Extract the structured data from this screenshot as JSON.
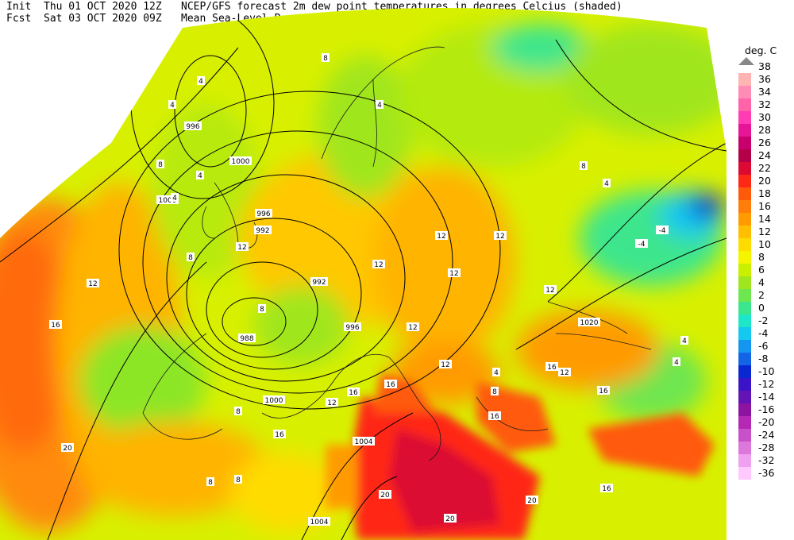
{
  "header": {
    "init_label": "Init",
    "init_time": "Thu 01 OCT 2020 12Z",
    "fcst_label": "Fcst",
    "fcst_time": "Sat 03 OCT 2020 09Z",
    "title_line1": "NCEP/GFS forecast 2m dew point temperatures in degrees Celcius (shaded)",
    "title_line2": "Mean Sea-Level Pressure (hPa) (black)."
  },
  "colorbar": {
    "unit": "deg. C",
    "levels": [
      {
        "v": "38",
        "c": "#bbbbbb"
      },
      {
        "v": "36",
        "c": "#ffb4b4"
      },
      {
        "v": "34",
        "c": "#ff8cb4"
      },
      {
        "v": "32",
        "c": "#ff64a8"
      },
      {
        "v": "30",
        "c": "#ff3cb4"
      },
      {
        "v": "28",
        "c": "#e61496"
      },
      {
        "v": "26",
        "c": "#c8006e"
      },
      {
        "v": "24",
        "c": "#b40046"
      },
      {
        "v": "22",
        "c": "#dc0a32"
      },
      {
        "v": "20",
        "c": "#ff2814"
      },
      {
        "v": "18",
        "c": "#ff5a0a"
      },
      {
        "v": "16",
        "c": "#ff7d0a"
      },
      {
        "v": "14",
        "c": "#ff9b00"
      },
      {
        "v": "12",
        "c": "#ffbe00"
      },
      {
        "v": "10",
        "c": "#ffdc00"
      },
      {
        "v": "8",
        "c": "#f5f500"
      },
      {
        "v": "6",
        "c": "#c8f000"
      },
      {
        "v": "4",
        "c": "#a0e61e"
      },
      {
        "v": "2",
        "c": "#6ee650"
      },
      {
        "v": "0",
        "c": "#3ce68c"
      },
      {
        "v": "-2",
        "c": "#1ee6c8"
      },
      {
        "v": "-4",
        "c": "#14c8f0"
      },
      {
        "v": "-6",
        "c": "#1496f0"
      },
      {
        "v": "-8",
        "c": "#1464e6"
      },
      {
        "v": "-10",
        "c": "#0a28d2"
      },
      {
        "v": "-12",
        "c": "#3c14c8"
      },
      {
        "v": "-14",
        "c": "#6414b4"
      },
      {
        "v": "-16",
        "c": "#8c14a0"
      },
      {
        "v": "-20",
        "c": "#b428b4"
      },
      {
        "v": "-24",
        "c": "#c850c8"
      },
      {
        "v": "-28",
        "c": "#dc78dc"
      },
      {
        "v": "-32",
        "c": "#f0a0f0"
      },
      {
        "v": "-36",
        "c": "#ffc8ff"
      }
    ]
  },
  "pressure_labels": [
    "996",
    "1000",
    "1000",
    "996",
    "992",
    "992",
    "988",
    "996",
    "1000",
    "1004",
    "1004",
    "1020"
  ],
  "dewpoint_labels": [
    "8",
    "4",
    "4",
    "4",
    "8",
    "4",
    "8",
    "4",
    "12",
    "12",
    "12",
    "12",
    "16",
    "12",
    "12",
    "16",
    "8",
    "8",
    "12",
    "16",
    "16",
    "20",
    "20",
    "20",
    "4",
    "-4",
    "-4",
    "4",
    "8",
    "12",
    "12",
    "16",
    "16",
    "16",
    "20",
    "4",
    "8",
    "8",
    "4",
    "12",
    "16",
    "8",
    "12"
  ]
}
